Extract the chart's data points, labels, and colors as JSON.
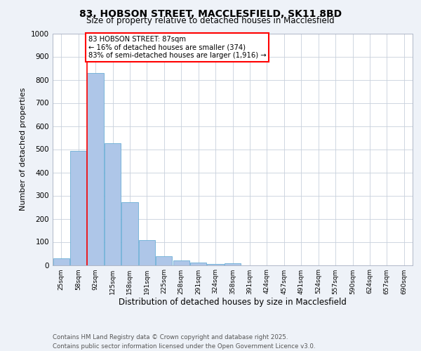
{
  "title_line1": "83, HOBSON STREET, MACCLESFIELD, SK11 8BD",
  "title_line2": "Size of property relative to detached houses in Macclesfield",
  "xlabel": "Distribution of detached houses by size in Macclesfield",
  "ylabel": "Number of detached properties",
  "categories": [
    "25sqm",
    "58sqm",
    "92sqm",
    "125sqm",
    "158sqm",
    "191sqm",
    "225sqm",
    "258sqm",
    "291sqm",
    "324sqm",
    "358sqm",
    "391sqm",
    "424sqm",
    "457sqm",
    "491sqm",
    "524sqm",
    "557sqm",
    "590sqm",
    "624sqm",
    "657sqm",
    "690sqm"
  ],
  "values": [
    28,
    492,
    830,
    525,
    270,
    108,
    37,
    20,
    10,
    5,
    8,
    0,
    0,
    0,
    0,
    0,
    0,
    0,
    0,
    0,
    0
  ],
  "bar_color": "#aec6e8",
  "bar_edge_color": "#6baed6",
  "annotation_text": "83 HOBSON STREET: 87sqm\n← 16% of detached houses are smaller (374)\n83% of semi-detached houses are larger (1,916) →",
  "annotation_box_edge_color": "red",
  "annotation_box_facecolor": "white",
  "red_line_color": "red",
  "ylim": [
    0,
    1000
  ],
  "yticks": [
    0,
    100,
    200,
    300,
    400,
    500,
    600,
    700,
    800,
    900,
    1000
  ],
  "footer_line1": "Contains HM Land Registry data © Crown copyright and database right 2025.",
  "footer_line2": "Contains public sector information licensed under the Open Government Licence v3.0.",
  "background_color": "#eef2f8",
  "plot_background_color": "#ffffff",
  "grid_color": "#c8d0dc"
}
